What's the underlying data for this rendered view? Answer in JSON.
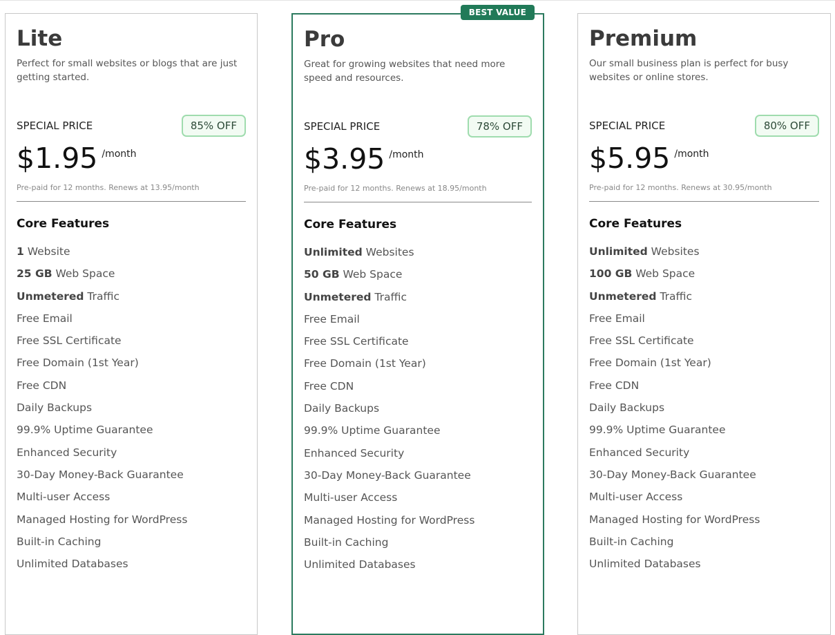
{
  "plans": [
    {
      "name": "Lite",
      "description": "Perfect for small websites or blogs that are just getting started.",
      "special_label": "SPECIAL PRICE",
      "discount": "85% OFF",
      "price": "$1.95",
      "period": "/month",
      "renewal": "Pre-paid for 12 months. Renews at 13.95/month",
      "features_title": "Core Features",
      "features": [
        {
          "bold": "1",
          "text": " Website"
        },
        {
          "bold": "25 GB",
          "text": " Web Space"
        },
        {
          "bold": "Unmetered",
          "text": " Traffic"
        },
        {
          "bold": "",
          "text": "Free Email"
        },
        {
          "bold": "",
          "text": "Free SSL Certificate"
        },
        {
          "bold": "",
          "text": "Free Domain (1st Year)"
        },
        {
          "bold": "",
          "text": "Free CDN"
        },
        {
          "bold": "",
          "text": "Daily Backups"
        },
        {
          "bold": "",
          "text": "99.9% Uptime Guarantee"
        },
        {
          "bold": "",
          "text": "Enhanced Security"
        },
        {
          "bold": "",
          "text": "30-Day Money-Back Guarantee"
        },
        {
          "bold": "",
          "text": "Multi-user Access"
        },
        {
          "bold": "",
          "text": "Managed Hosting for WordPress"
        },
        {
          "bold": "",
          "text": "Built-in Caching"
        },
        {
          "bold": "",
          "text": "Unlimited Databases"
        }
      ]
    },
    {
      "name": "Pro",
      "badge": "BEST VALUE",
      "description": "Great for growing websites that need more speed and resources.",
      "special_label": "SPECIAL PRICE",
      "discount": "78% OFF",
      "price": "$3.95",
      "period": "/month",
      "renewal": "Pre-paid for 12 months. Renews at 18.95/month",
      "features_title": "Core Features",
      "features": [
        {
          "bold": "Unlimited",
          "text": " Websites"
        },
        {
          "bold": "50 GB",
          "text": " Web Space"
        },
        {
          "bold": "Unmetered",
          "text": " Traffic"
        },
        {
          "bold": "",
          "text": "Free Email"
        },
        {
          "bold": "",
          "text": "Free SSL Certificate"
        },
        {
          "bold": "",
          "text": "Free Domain (1st Year)"
        },
        {
          "bold": "",
          "text": "Free CDN"
        },
        {
          "bold": "",
          "text": "Daily Backups"
        },
        {
          "bold": "",
          "text": "99.9% Uptime Guarantee"
        },
        {
          "bold": "",
          "text": "Enhanced Security"
        },
        {
          "bold": "",
          "text": "30-Day Money-Back Guarantee"
        },
        {
          "bold": "",
          "text": "Multi-user Access"
        },
        {
          "bold": "",
          "text": "Managed Hosting for WordPress"
        },
        {
          "bold": "",
          "text": "Built-in Caching"
        },
        {
          "bold": "",
          "text": "Unlimited Databases"
        }
      ]
    },
    {
      "name": "Premium",
      "description": "Our small business plan is perfect for busy websites or online stores.",
      "special_label": "SPECIAL PRICE",
      "discount": "80% OFF",
      "price": "$5.95",
      "period": "/month",
      "renewal": "Pre-paid for 12 months. Renews at 30.95/month",
      "features_title": "Core Features",
      "features": [
        {
          "bold": "Unlimited",
          "text": " Websites"
        },
        {
          "bold": "100 GB",
          "text": " Web Space"
        },
        {
          "bold": "Unmetered",
          "text": " Traffic"
        },
        {
          "bold": "",
          "text": "Free Email"
        },
        {
          "bold": "",
          "text": "Free SSL Certificate"
        },
        {
          "bold": "",
          "text": "Free Domain (1st Year)"
        },
        {
          "bold": "",
          "text": "Free CDN"
        },
        {
          "bold": "",
          "text": "Daily Backups"
        },
        {
          "bold": "",
          "text": "99.9% Uptime Guarantee"
        },
        {
          "bold": "",
          "text": "Enhanced Security"
        },
        {
          "bold": "",
          "text": "30-Day Money-Back Guarantee"
        },
        {
          "bold": "",
          "text": "Multi-user Access"
        },
        {
          "bold": "",
          "text": "Managed Hosting for WordPress"
        },
        {
          "bold": "",
          "text": "Built-in Caching"
        },
        {
          "bold": "",
          "text": "Unlimited Databases"
        }
      ]
    }
  ],
  "colors": {
    "accent": "#217a58",
    "discount_border": "#9fdcae"
  }
}
